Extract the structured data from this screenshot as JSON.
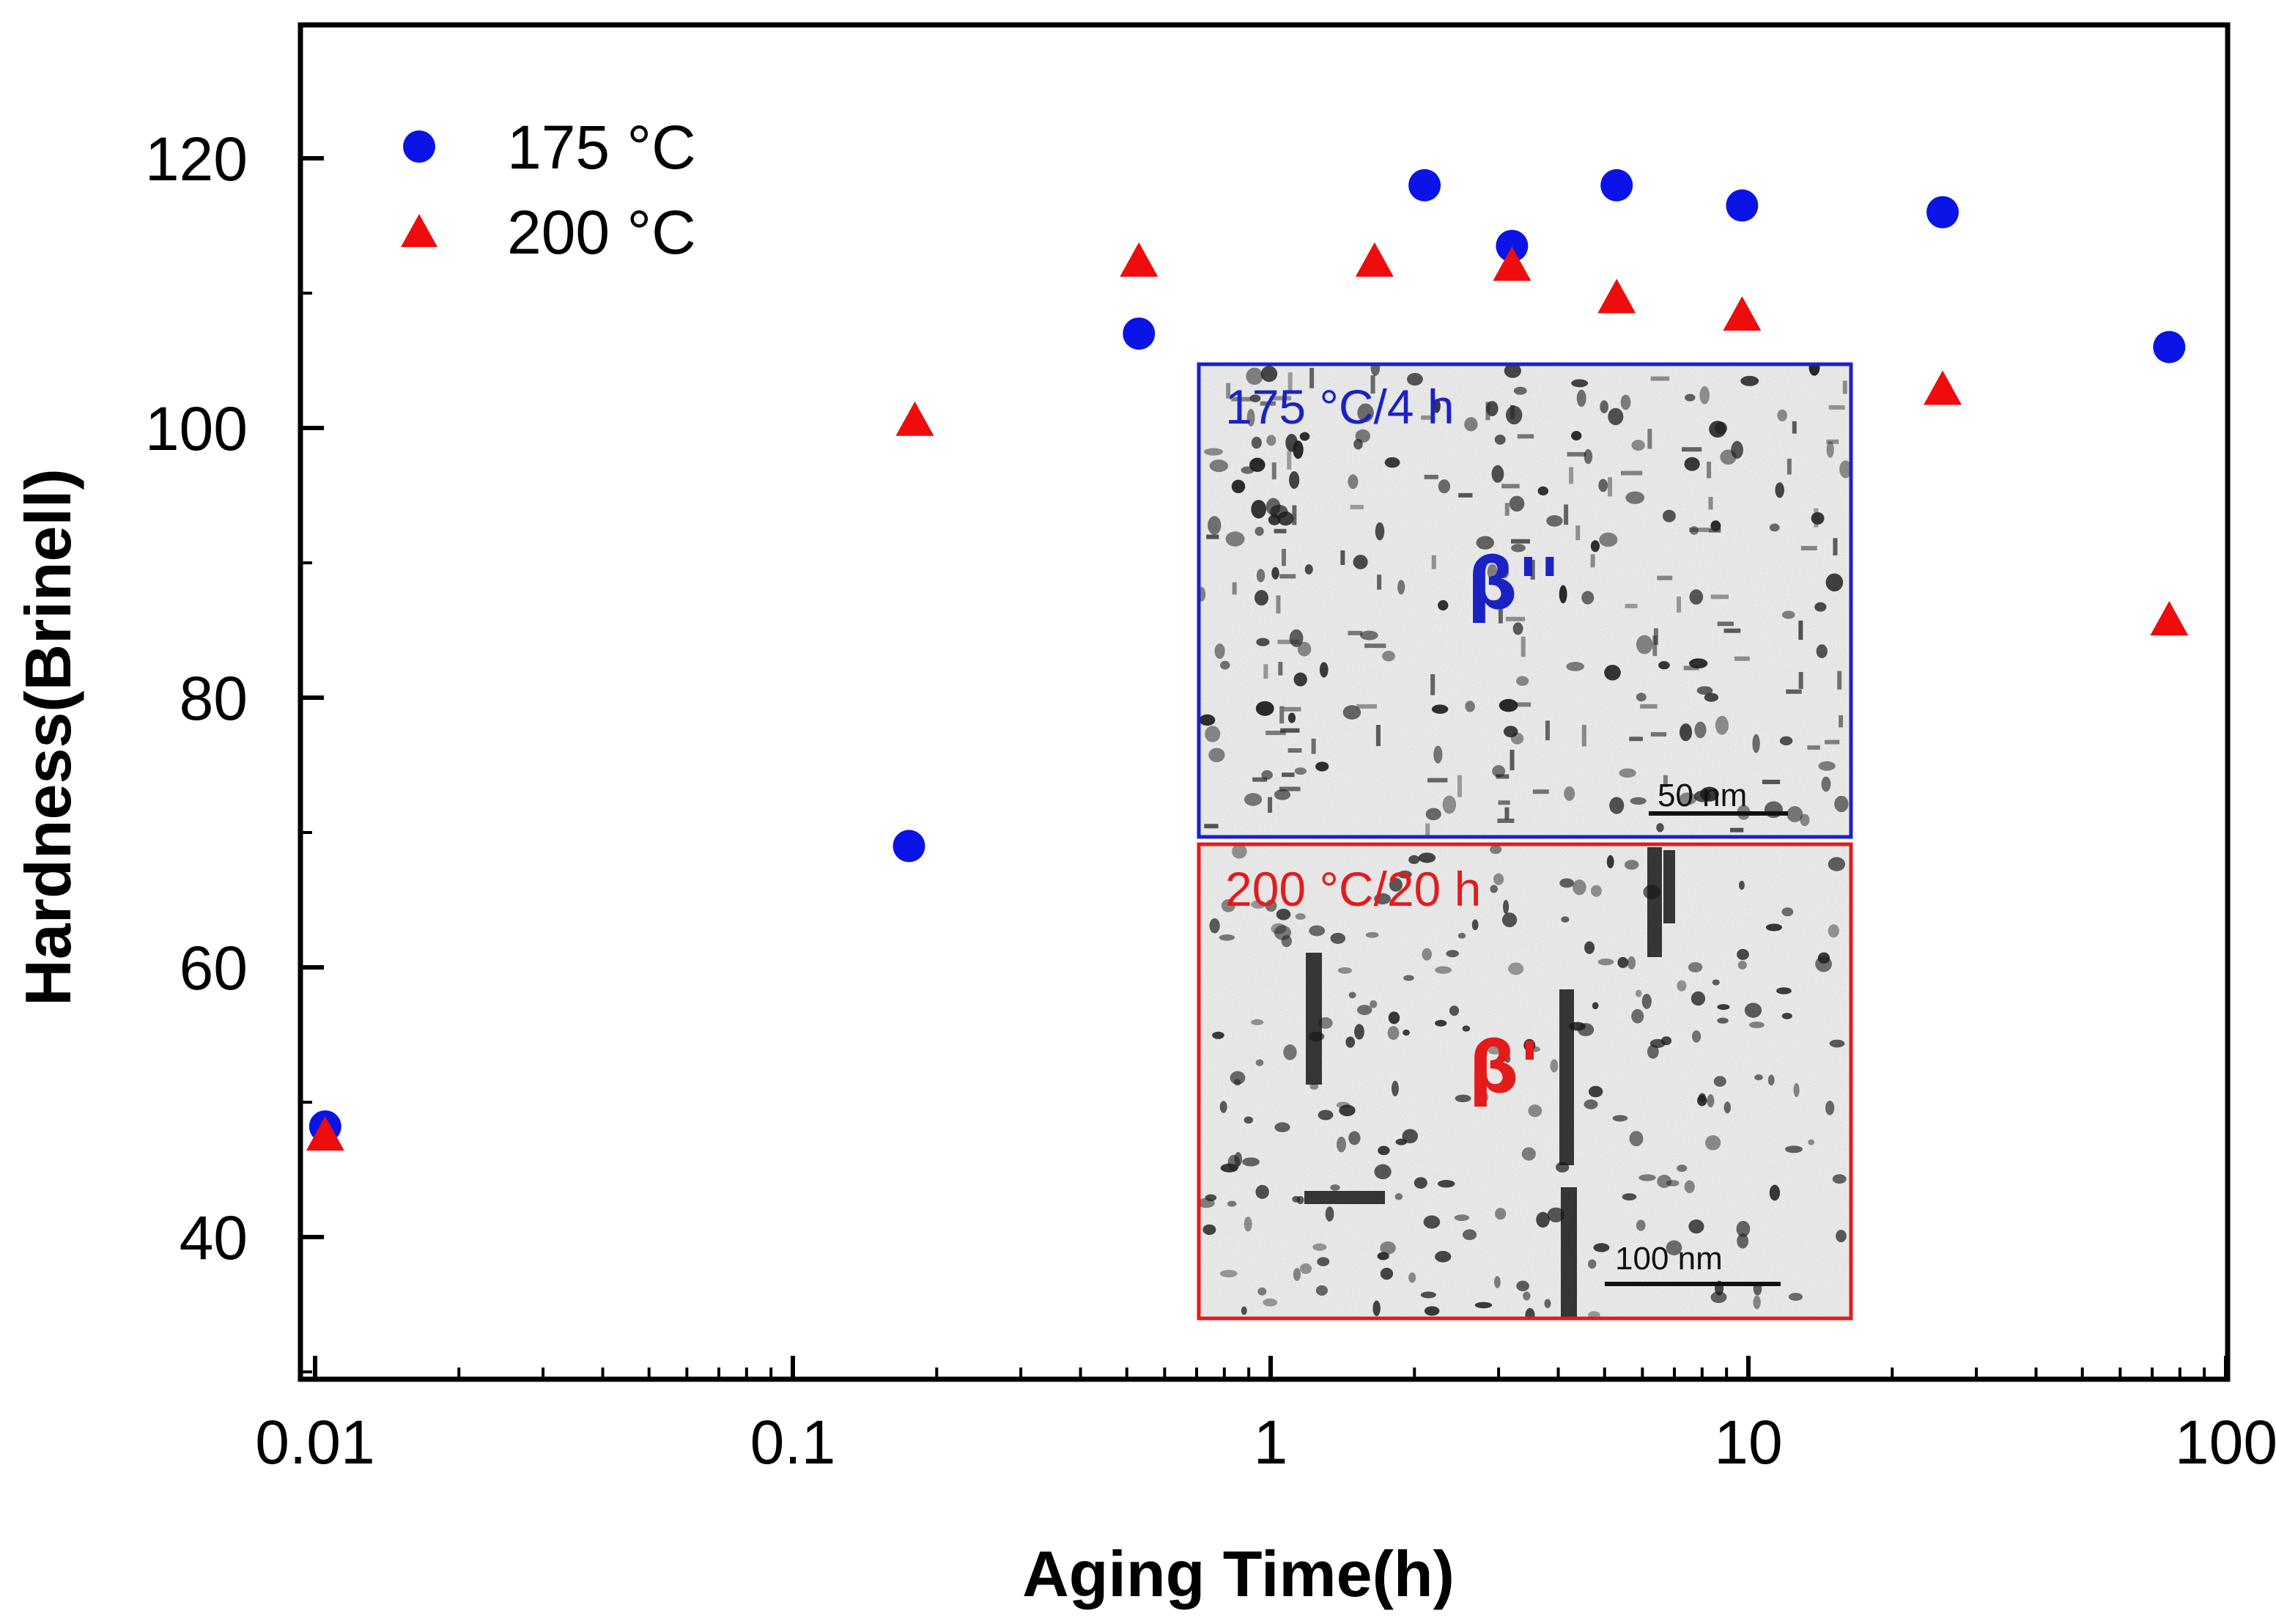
{
  "chart_data": {
    "type": "scatter",
    "title": "",
    "xlabel": "Aging Time(h)",
    "ylabel": "Hardness(Brinell)",
    "xscale": "log",
    "xlim": [
      0.01,
      100
    ],
    "ylim": [
      30,
      130
    ],
    "x_ticks": [
      "0.01",
      "0.1",
      "1",
      "10",
      "100"
    ],
    "y_ticks": [
      "40",
      "60",
      "80",
      "100",
      "120"
    ],
    "legend_position": "top-left",
    "series": [
      {
        "name": "175 °C",
        "marker": "circle",
        "color": "#0a14e6",
        "points": [
          {
            "x": 0.0105,
            "y": 48.2
          },
          {
            "x": 0.175,
            "y": 69.0
          },
          {
            "x": 0.53,
            "y": 107.0
          },
          {
            "x": 2.1,
            "y": 118.0
          },
          {
            "x": 3.2,
            "y": 113.5
          },
          {
            "x": 5.3,
            "y": 118.0
          },
          {
            "x": 9.7,
            "y": 116.5
          },
          {
            "x": 25.5,
            "y": 116.0
          },
          {
            "x": 76.0,
            "y": 106.0
          }
        ]
      },
      {
        "name": "200 °C",
        "marker": "triangle",
        "color": "#ee0c0c",
        "points": [
          {
            "x": 0.0105,
            "y": 47.5
          },
          {
            "x": 0.18,
            "y": 100.5
          },
          {
            "x": 0.53,
            "y": 112.3
          },
          {
            "x": 1.65,
            "y": 112.3
          },
          {
            "x": 3.2,
            "y": 112.0
          },
          {
            "x": 5.3,
            "y": 109.6
          },
          {
            "x": 9.7,
            "y": 108.3
          },
          {
            "x": 25.5,
            "y": 102.8
          },
          {
            "x": 76.0,
            "y": 85.7
          }
        ]
      }
    ],
    "insets": [
      {
        "label": "175 °C/4 h",
        "phase": "β''",
        "scale_bar": "50 nm",
        "color": "#1b22c4"
      },
      {
        "label": "200 °C/20 h",
        "phase": "β'",
        "scale_bar": "100 nm",
        "color": "#e41b1b"
      }
    ]
  }
}
